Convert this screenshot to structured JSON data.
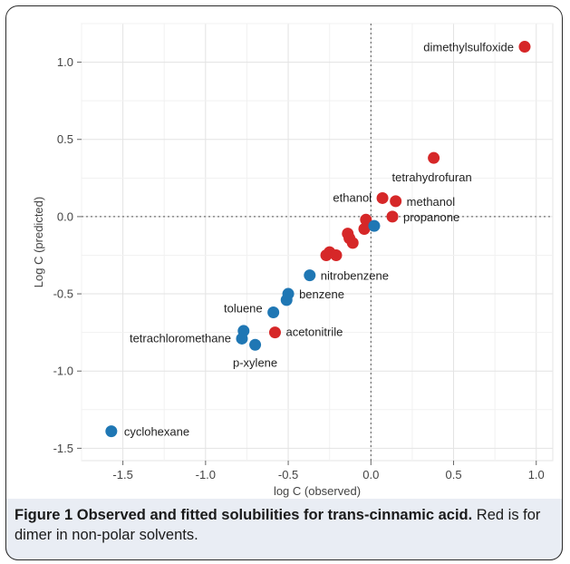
{
  "chart_data": {
    "type": "scatter",
    "xlabel": "log C (observed)",
    "ylabel": "Log C (predicted)",
    "xlim": [
      -1.75,
      1.1
    ],
    "ylim": [
      -1.58,
      1.25
    ],
    "xticks": [
      -1.5,
      -1.0,
      -0.5,
      0.0,
      0.5,
      1.0
    ],
    "xtick_labels": [
      "-1.5",
      "-1.0",
      "-0.5",
      "0.0",
      "0.5",
      "1.0"
    ],
    "yticks": [
      -1.5,
      -1.0,
      -0.5,
      0.0,
      0.5,
      1.0
    ],
    "ytick_labels": [
      "-1.5",
      "-1.0",
      "-0.5",
      "0.0",
      "0.5",
      "1.0"
    ],
    "grid": true,
    "reference_lines": {
      "x": 0,
      "y": 0,
      "style": "dotted"
    },
    "series": [
      {
        "color": "#d62728",
        "points": [
          {
            "x": 0.93,
            "y": 1.1,
            "label": "dimethylsulfoxide"
          },
          {
            "x": 0.38,
            "y": 0.38,
            "label": "tetrahydrofuran"
          },
          {
            "x": 0.07,
            "y": 0.12,
            "label": "ethanol"
          },
          {
            "x": 0.15,
            "y": 0.1,
            "label": "methanol"
          },
          {
            "x": 0.13,
            "y": 0.0,
            "label": "propanone"
          },
          {
            "x": -0.03,
            "y": -0.02
          },
          {
            "x": -0.04,
            "y": -0.08
          },
          {
            "x": -0.14,
            "y": -0.11
          },
          {
            "x": -0.13,
            "y": -0.14
          },
          {
            "x": -0.11,
            "y": -0.17
          },
          {
            "x": -0.25,
            "y": -0.23
          },
          {
            "x": -0.27,
            "y": -0.25
          },
          {
            "x": -0.21,
            "y": -0.25
          },
          {
            "x": -0.58,
            "y": -0.75,
            "label": "acetonitrile"
          }
        ]
      },
      {
        "color": "#1f77b4",
        "points": [
          {
            "x": 0.02,
            "y": -0.06
          },
          {
            "x": -0.37,
            "y": -0.38,
            "label": "nitrobenzene"
          },
          {
            "x": -0.5,
            "y": -0.5,
            "label": "benzene"
          },
          {
            "x": -0.51,
            "y": -0.54
          },
          {
            "x": -0.59,
            "y": -0.62,
            "label": "toluene"
          },
          {
            "x": -0.77,
            "y": -0.74
          },
          {
            "x": -0.78,
            "y": -0.79,
            "label": "tetrachloromethane"
          },
          {
            "x": -0.7,
            "y": -0.83,
            "label": "p-xylene"
          },
          {
            "x": -1.57,
            "y": -1.39,
            "label": "cyclohexane"
          }
        ]
      }
    ]
  },
  "caption": {
    "title": "Figure 1 Observed and fitted solubilities for trans-cinnamic acid.",
    "text": "Red is for dimer in non-polar solvents."
  }
}
